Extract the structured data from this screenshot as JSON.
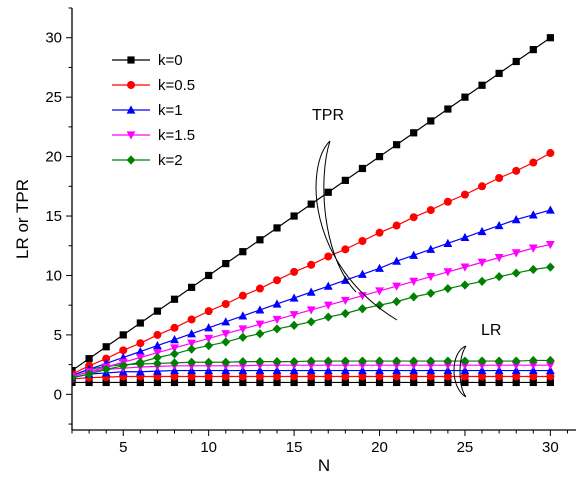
{
  "chart_data": {
    "type": "line",
    "title": "",
    "xlabel": "N",
    "ylabel": "LR or TPR",
    "xlim": [
      2,
      31.5
    ],
    "ylim": [
      -3,
      32.5
    ],
    "xticks": [
      5,
      10,
      15,
      20,
      25,
      30
    ],
    "yticks": [
      0,
      5,
      10,
      15,
      20,
      25,
      30
    ],
    "grid": false,
    "legend_position": "top-left",
    "x": [
      2,
      3,
      4,
      5,
      6,
      7,
      8,
      9,
      10,
      11,
      12,
      13,
      14,
      15,
      16,
      17,
      18,
      19,
      20,
      21,
      22,
      23,
      24,
      25,
      26,
      27,
      28,
      29,
      30
    ],
    "series": [
      {
        "name": "k=0",
        "group": "TPR",
        "color": "#000000",
        "marker": "square",
        "values": [
          2,
          3,
          4,
          5,
          6,
          7,
          8,
          9,
          10,
          11,
          12,
          13,
          14,
          15,
          16,
          17,
          18,
          19,
          20,
          21,
          22,
          23,
          24,
          25,
          26,
          27,
          28,
          29,
          30
        ]
      },
      {
        "name": "k=0.5",
        "group": "TPR",
        "color": "#ff0000",
        "marker": "circle",
        "values": [
          1.7,
          2.4,
          3.0,
          3.7,
          4.3,
          5.0,
          5.6,
          6.3,
          7.0,
          7.6,
          8.3,
          8.9,
          9.6,
          10.3,
          10.9,
          11.6,
          12.2,
          12.9,
          13.6,
          14.2,
          14.9,
          15.5,
          16.2,
          16.8,
          17.5,
          18.2,
          18.8,
          19.5,
          20.3
        ]
      },
      {
        "name": "k=1",
        "group": "TPR",
        "color": "#0000ff",
        "marker": "triangle-up",
        "values": [
          1.6,
          2.1,
          2.6,
          3.1,
          3.6,
          4.1,
          4.6,
          5.1,
          5.6,
          6.1,
          6.6,
          7.1,
          7.6,
          8.1,
          8.6,
          9.1,
          9.6,
          10.1,
          10.6,
          11.2,
          11.7,
          12.2,
          12.7,
          13.2,
          13.7,
          14.2,
          14.7,
          15.1,
          15.5
        ]
      },
      {
        "name": "k=1.5",
        "group": "TPR",
        "color": "#ff00ff",
        "marker": "triangle-down",
        "values": [
          1.5,
          1.9,
          2.3,
          2.7,
          3.1,
          3.5,
          3.9,
          4.3,
          4.7,
          5.1,
          5.5,
          5.9,
          6.3,
          6.7,
          7.1,
          7.5,
          7.9,
          8.3,
          8.7,
          9.1,
          9.5,
          9.9,
          10.3,
          10.7,
          11.1,
          11.5,
          11.9,
          12.3,
          12.6
        ]
      },
      {
        "name": "k=2",
        "group": "TPR",
        "color": "#008000",
        "marker": "diamond",
        "values": [
          1.4,
          1.7,
          2.1,
          2.4,
          2.7,
          3.1,
          3.4,
          3.8,
          4.1,
          4.4,
          4.8,
          5.1,
          5.5,
          5.8,
          6.1,
          6.5,
          6.8,
          7.2,
          7.5,
          7.8,
          8.2,
          8.5,
          8.9,
          9.2,
          9.5,
          9.9,
          10.2,
          10.5,
          10.7
        ]
      },
      {
        "name": "k=0",
        "group": "LR",
        "color": "#000000",
        "marker": "square",
        "values": [
          1,
          1,
          1,
          1,
          1,
          1,
          1,
          1,
          1,
          1,
          1,
          1,
          1,
          1,
          1,
          1,
          1,
          1,
          1,
          1,
          1,
          1,
          1,
          1,
          1,
          1,
          1,
          1,
          1
        ]
      },
      {
        "name": "k=0.5",
        "group": "LR",
        "color": "#ff0000",
        "marker": "circle",
        "values": [
          1.3,
          1.4,
          1.45,
          1.5,
          1.5,
          1.5,
          1.5,
          1.5,
          1.5,
          1.5,
          1.5,
          1.5,
          1.5,
          1.5,
          1.5,
          1.5,
          1.5,
          1.5,
          1.5,
          1.5,
          1.5,
          1.5,
          1.5,
          1.5,
          1.5,
          1.5,
          1.5,
          1.5,
          1.5
        ]
      },
      {
        "name": "k=1",
        "group": "LR",
        "color": "#0000ff",
        "marker": "triangle-up",
        "values": [
          1.4,
          1.7,
          1.8,
          1.9,
          1.9,
          1.95,
          2.0,
          2.0,
          2.0,
          2.0,
          2.0,
          2.0,
          2.0,
          2.0,
          2.0,
          2.0,
          2.0,
          2.0,
          2.0,
          2.0,
          2.0,
          2.0,
          2.0,
          2.0,
          2.0,
          2.0,
          2.0,
          2.0,
          2.0
        ]
      },
      {
        "name": "k=1.5",
        "group": "LR",
        "color": "#ff00ff",
        "marker": "triangle-down",
        "values": [
          1.5,
          1.9,
          2.1,
          2.2,
          2.3,
          2.35,
          2.4,
          2.4,
          2.4,
          2.4,
          2.4,
          2.45,
          2.45,
          2.45,
          2.45,
          2.45,
          2.45,
          2.45,
          2.45,
          2.45,
          2.45,
          2.45,
          2.45,
          2.45,
          2.45,
          2.45,
          2.45,
          2.45,
          2.45
        ]
      },
      {
        "name": "k=2",
        "group": "LR",
        "color": "#008000",
        "marker": "diamond",
        "values": [
          1.6,
          2.1,
          2.35,
          2.5,
          2.55,
          2.6,
          2.65,
          2.7,
          2.7,
          2.7,
          2.75,
          2.75,
          2.75,
          2.75,
          2.8,
          2.8,
          2.8,
          2.8,
          2.8,
          2.8,
          2.8,
          2.8,
          2.8,
          2.8,
          2.8,
          2.8,
          2.8,
          2.85,
          2.85
        ]
      }
    ],
    "annotations": [
      {
        "text": "TPR"
      },
      {
        "text": "LR"
      }
    ]
  }
}
